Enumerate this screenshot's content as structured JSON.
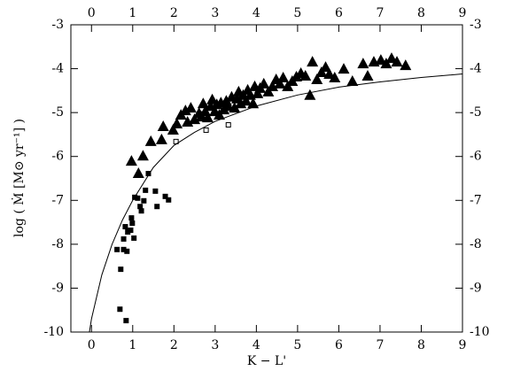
{
  "chart_data": {
    "type": "scatter",
    "x_label": "K − L'",
    "y_label": "log ( Ṁ  [M⊙ yr⁻¹] )",
    "xlim": [
      -0.5,
      9
    ],
    "ylim": [
      -10,
      -3
    ],
    "xticks": [
      0,
      1,
      2,
      3,
      4,
      5,
      6,
      7,
      8,
      9
    ],
    "yticks": [
      -10,
      -9,
      -8,
      -7,
      -6,
      -5,
      -4,
      -3
    ],
    "mirror_axes": true,
    "series": [
      {
        "marker": "triangle",
        "color": "#000000",
        "x": [
          0.97,
          1.25,
          1.44,
          1.74,
          1.98,
          2.07,
          2.17,
          2.28,
          2.33,
          2.41,
          2.5,
          2.61,
          2.67,
          2.71,
          2.76,
          2.82,
          2.89,
          2.93,
          2.99,
          3.04,
          3.1,
          3.14,
          3.21,
          3.27,
          3.32,
          3.4,
          3.47,
          3.53,
          3.57,
          3.62,
          3.68,
          3.75,
          3.79,
          3.85,
          3.92,
          3.96,
          4.03,
          4.09,
          4.18,
          4.29,
          4.39,
          4.48,
          4.57,
          4.65,
          4.76,
          4.87,
          4.97,
          5.08,
          5.19,
          5.3,
          5.36,
          5.47,
          5.58,
          5.68,
          5.77,
          5.9,
          6.12,
          6.33,
          6.59,
          6.7,
          6.85,
          7.02,
          7.15,
          7.28,
          7.41,
          7.62,
          1.7,
          1.14
        ],
        "values": [
          -6.11,
          -5.99,
          -5.66,
          -5.32,
          -5.4,
          -5.26,
          -5.06,
          -4.96,
          -5.22,
          -4.9,
          -5.16,
          -5.02,
          -5.1,
          -4.8,
          -4.98,
          -5.12,
          -4.86,
          -4.71,
          -4.98,
          -4.82,
          -5.06,
          -4.78,
          -4.94,
          -4.74,
          -4.86,
          -4.65,
          -4.9,
          -4.69,
          -4.53,
          -4.8,
          -4.61,
          -4.74,
          -4.49,
          -4.61,
          -4.8,
          -4.41,
          -4.57,
          -4.45,
          -4.35,
          -4.53,
          -4.41,
          -4.25,
          -4.35,
          -4.21,
          -4.41,
          -4.29,
          -4.19,
          -4.11,
          -4.17,
          -4.61,
          -3.85,
          -4.25,
          -4.09,
          -3.97,
          -4.13,
          -4.21,
          -4.01,
          -4.29,
          -3.89,
          -4.17,
          -3.85,
          -3.81,
          -3.89,
          -3.77,
          -3.85,
          -3.93,
          -5.62,
          -6.39
        ]
      },
      {
        "marker": "square",
        "color": "#000000",
        "x": [
          0.69,
          0.84,
          0.62,
          0.78,
          0.71,
          0.78,
          0.86,
          0.88,
          0.95,
          1.03,
          0.97,
          1.05,
          1.12,
          1.18,
          1.21,
          1.27,
          1.31,
          1.55,
          1.59,
          1.79,
          1.87,
          1.38,
          0.99,
          0.82
        ],
        "values": [
          -9.48,
          -9.74,
          -8.12,
          -8.12,
          -8.57,
          -7.88,
          -8.16,
          -7.72,
          -7.68,
          -7.86,
          -7.4,
          -6.93,
          -6.95,
          -7.14,
          -7.24,
          -7.01,
          -6.77,
          -6.79,
          -7.14,
          -6.91,
          -6.99,
          -6.39,
          -7.52,
          -7.6
        ]
      },
      {
        "marker": "open-square",
        "color": "#000000",
        "x": [
          2.05,
          2.78,
          3.32
        ],
        "values": [
          -5.66,
          -5.4,
          -5.28
        ]
      },
      {
        "marker": "line",
        "color": "#000000",
        "x": [
          -0.05,
          0,
          0.25,
          0.5,
          0.75,
          1,
          1.5,
          2,
          2.5,
          3,
          4,
          5,
          6,
          7,
          8,
          9
        ],
        "values": [
          -10,
          -9.7,
          -8.7,
          -8.0,
          -7.45,
          -7.0,
          -6.25,
          -5.75,
          -5.45,
          -5.2,
          -4.85,
          -4.6,
          -4.42,
          -4.3,
          -4.2,
          -4.12
        ]
      }
    ]
  }
}
